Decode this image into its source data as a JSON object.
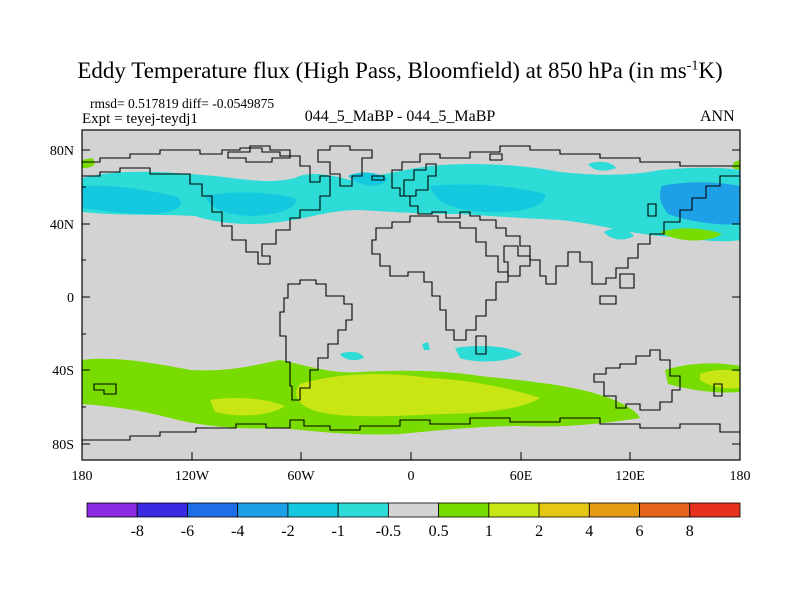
{
  "title": {
    "text_main": "Eddy Temperature flux (High Pass, Bloomfield) at 850 hPa (in ms",
    "superscript": "-1",
    "text_end": "K)"
  },
  "subtitle": {
    "stats": "rmsd= 0.517819 diff= -0.0549875",
    "expt": "Expt = teyej-teydj1",
    "center": "044_5_MaBP - 044_5_MaBP",
    "season": "ANN"
  },
  "axes": {
    "lat_labels": [
      "80N",
      "40N",
      "0",
      "40S",
      "80S"
    ],
    "lon_labels": [
      "180",
      "120W",
      "60W",
      "0",
      "60E",
      "120E",
      "180"
    ]
  },
  "colorbar": {
    "colors": [
      "#8a2be2",
      "#3a2be2",
      "#1e6ee6",
      "#1ea0e6",
      "#14c8e0",
      "#2ddcd6",
      "#d3d3d3",
      "#78dc00",
      "#c8e614",
      "#e6c814",
      "#e69b14",
      "#e6641e",
      "#e6321e"
    ],
    "labels": [
      "-8",
      "-6",
      "-4",
      "-2",
      "-1",
      "-0.5",
      "0.5",
      "1",
      "2",
      "4",
      "6",
      "8"
    ]
  },
  "map": {
    "background_color": "#d3d3d3",
    "legend_colors": {
      "neg_light": "#2ddcd6",
      "neg_mid": "#14c8e0",
      "neg_strong": "#1ea0e6",
      "pos_light": "#78dc00",
      "pos_mid": "#c8e614"
    }
  }
}
